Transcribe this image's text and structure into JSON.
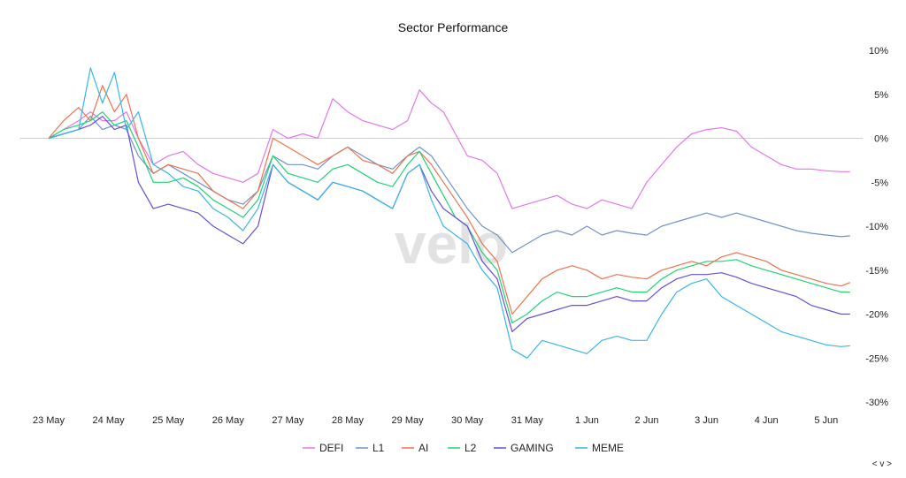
{
  "chart_data": {
    "type": "line",
    "title": "Sector Performance",
    "watermark": "velo",
    "corner_control": "< v >",
    "x_ticks": [
      "23 May",
      "24 May",
      "25 May",
      "26 May",
      "27 May",
      "28 May",
      "29 May",
      "30 May",
      "31 May",
      "1 Jun",
      "2 Jun",
      "3 Jun",
      "4 Jun",
      "5 Jun"
    ],
    "y_ticks": [
      "10%",
      "5%",
      "0%",
      "-5%",
      "-10%",
      "-15%",
      "-20%",
      "-25%",
      "-30%"
    ],
    "y_tick_values": [
      10,
      5,
      0,
      -5,
      -10,
      -15,
      -20,
      -25,
      -30
    ],
    "ylim": [
      -30,
      10
    ],
    "x_range_days": [
      -0.25,
      13.5
    ],
    "legend_position": "bottom",
    "zero_line": true,
    "series": [
      {
        "name": "DEFI",
        "color": "#e377e8",
        "x": [
          0,
          0.25,
          0.5,
          0.7,
          0.9,
          1.1,
          1.3,
          1.5,
          1.75,
          2,
          2.25,
          2.5,
          2.75,
          3,
          3.25,
          3.5,
          3.75,
          4,
          4.25,
          4.5,
          4.75,
          5,
          5.25,
          5.5,
          5.75,
          6,
          6.2,
          6.4,
          6.6,
          6.8,
          7,
          7.25,
          7.5,
          7.75,
          8,
          8.25,
          8.5,
          8.75,
          9,
          9.25,
          9.5,
          9.75,
          10,
          10.25,
          10.5,
          10.75,
          11,
          11.25,
          11.5,
          11.75,
          12,
          12.25,
          12.5,
          12.75,
          13,
          13.25,
          13.4
        ],
        "values": [
          0,
          1,
          2,
          3,
          2,
          2,
          3,
          0,
          -3,
          -2,
          -1.5,
          -3,
          -4,
          -4.5,
          -5,
          -4,
          1,
          0,
          0.5,
          0,
          4.5,
          3,
          2,
          1.5,
          1,
          2,
          5.5,
          4,
          3,
          0.5,
          -2,
          -2.5,
          -4,
          -8,
          -7.5,
          -7,
          -6.5,
          -7.5,
          -8,
          -7,
          -7.5,
          -8,
          -5,
          -3,
          -1,
          0.5,
          1,
          1.2,
          0.8,
          -1,
          -2,
          -3,
          -3.5,
          -3.5,
          -3.7,
          -3.8,
          -3.8
        ]
      },
      {
        "name": "L1",
        "color": "#6f93c9",
        "x": [
          0,
          0.25,
          0.5,
          0.7,
          0.9,
          1.1,
          1.3,
          1.5,
          1.75,
          2,
          2.25,
          2.5,
          2.75,
          3,
          3.25,
          3.5,
          3.75,
          4,
          4.25,
          4.5,
          4.75,
          5,
          5.25,
          5.5,
          5.75,
          6,
          6.2,
          6.4,
          6.6,
          6.8,
          7,
          7.25,
          7.5,
          7.75,
          8,
          8.25,
          8.5,
          8.75,
          9,
          9.25,
          9.5,
          9.75,
          10,
          10.25,
          10.5,
          10.75,
          11,
          11.25,
          11.5,
          11.75,
          12,
          12.25,
          12.5,
          12.75,
          13,
          13.25,
          13.4
        ],
        "values": [
          0,
          0.5,
          1,
          2.5,
          1,
          1.5,
          1,
          -2,
          -4,
          -3,
          -4,
          -5,
          -6,
          -7,
          -7.5,
          -6,
          -2,
          -3,
          -3,
          -3.5,
          -2,
          -1,
          -2,
          -3,
          -3.5,
          -2,
          -1,
          -2,
          -4,
          -6,
          -8,
          -10,
          -11,
          -13,
          -12,
          -11,
          -10.5,
          -11,
          -10,
          -11,
          -10.5,
          -10.8,
          -11,
          -10,
          -9.5,
          -9,
          -8.5,
          -9,
          -8.5,
          -9,
          -9.5,
          -10,
          -10.5,
          -10.8,
          -11,
          -11.2,
          -11.1
        ]
      },
      {
        "name": "AI",
        "color": "#f0724a",
        "x": [
          0,
          0.25,
          0.5,
          0.7,
          0.9,
          1.1,
          1.3,
          1.5,
          1.75,
          2,
          2.25,
          2.5,
          2.75,
          3,
          3.25,
          3.5,
          3.75,
          4,
          4.25,
          4.5,
          4.75,
          5,
          5.25,
          5.5,
          5.75,
          6,
          6.2,
          6.4,
          6.6,
          6.8,
          7,
          7.25,
          7.5,
          7.75,
          8,
          8.25,
          8.5,
          8.75,
          9,
          9.25,
          9.5,
          9.75,
          10,
          10.25,
          10.5,
          10.75,
          11,
          11.25,
          11.5,
          11.75,
          12,
          12.25,
          12.5,
          12.75,
          13,
          13.25,
          13.4
        ],
        "values": [
          0,
          2,
          3.5,
          2,
          6,
          3,
          5,
          0,
          -4,
          -3,
          -3.5,
          -4,
          -6,
          -7,
          -8,
          -6,
          0,
          -1,
          -2,
          -3,
          -2,
          -1,
          -2.5,
          -3,
          -4,
          -2,
          -1.5,
          -3,
          -5,
          -7,
          -9,
          -12,
          -14,
          -20,
          -18,
          -16,
          -15,
          -14.5,
          -15,
          -16,
          -15.5,
          -15.8,
          -16,
          -15,
          -14.5,
          -14,
          -14.5,
          -13.5,
          -13,
          -13.5,
          -14,
          -15,
          -15.5,
          -16,
          -16.5,
          -16.8,
          -16.4
        ]
      },
      {
        "name": "L2",
        "color": "#22d275",
        "x": [
          0,
          0.25,
          0.5,
          0.7,
          0.9,
          1.1,
          1.3,
          1.5,
          1.75,
          2,
          2.25,
          2.5,
          2.75,
          3,
          3.25,
          3.5,
          3.75,
          4,
          4.25,
          4.5,
          4.75,
          5,
          5.25,
          5.5,
          5.75,
          6,
          6.2,
          6.4,
          6.6,
          6.8,
          7,
          7.25,
          7.5,
          7.75,
          8,
          8.25,
          8.5,
          8.75,
          9,
          9.25,
          9.5,
          9.75,
          10,
          10.25,
          10.5,
          10.75,
          11,
          11.25,
          11.5,
          11.75,
          12,
          12.25,
          12.5,
          12.75,
          13,
          13.25,
          13.4
        ],
        "values": [
          0,
          1,
          1.5,
          2,
          3,
          1.5,
          2,
          -1,
          -5,
          -5,
          -4.5,
          -5.5,
          -7,
          -8,
          -9,
          -7,
          -2,
          -4,
          -4.5,
          -5,
          -3.5,
          -3,
          -4,
          -5,
          -5.5,
          -3,
          -1.5,
          -4,
          -6.5,
          -9,
          -10,
          -13,
          -15,
          -21,
          -20,
          -18.5,
          -17.5,
          -18,
          -18,
          -17.5,
          -17,
          -17.5,
          -17.5,
          -16,
          -15,
          -14.5,
          -14,
          -14,
          -13.8,
          -14.5,
          -15,
          -15.5,
          -16,
          -16.5,
          -17,
          -17.5,
          -17.5
        ]
      },
      {
        "name": "GAMING",
        "color": "#6a4fd0",
        "x": [
          0,
          0.25,
          0.5,
          0.7,
          0.9,
          1.1,
          1.3,
          1.5,
          1.75,
          2,
          2.25,
          2.5,
          2.75,
          3,
          3.25,
          3.5,
          3.75,
          4,
          4.25,
          4.5,
          4.75,
          5,
          5.25,
          5.5,
          5.75,
          6,
          6.2,
          6.4,
          6.6,
          6.8,
          7,
          7.25,
          7.5,
          7.75,
          8,
          8.25,
          8.5,
          8.75,
          9,
          9.25,
          9.5,
          9.75,
          10,
          10.25,
          10.5,
          10.75,
          11,
          11.25,
          11.5,
          11.75,
          12,
          12.25,
          12.5,
          12.75,
          13,
          13.25,
          13.4
        ],
        "values": [
          0,
          0.5,
          1,
          1.5,
          2.5,
          1,
          1.5,
          -5,
          -8,
          -7.5,
          -8,
          -8.5,
          -10,
          -11,
          -12,
          -10,
          -3,
          -5,
          -6,
          -7,
          -5,
          -5.5,
          -6,
          -7,
          -8,
          -4,
          -3,
          -6,
          -8,
          -9,
          -10,
          -14,
          -16,
          -22,
          -20.5,
          -20,
          -19.5,
          -19,
          -19,
          -18.5,
          -18,
          -18.5,
          -18.5,
          -17,
          -16,
          -15.5,
          -15.5,
          -15.3,
          -15.8,
          -16.5,
          -17,
          -17.5,
          -18,
          -19,
          -19.5,
          -20,
          -20
        ]
      },
      {
        "name": "MEME",
        "color": "#39b5ea",
        "x": [
          0,
          0.25,
          0.5,
          0.7,
          0.9,
          1.1,
          1.3,
          1.5,
          1.75,
          2,
          2.25,
          2.5,
          2.75,
          3,
          3.25,
          3.5,
          3.75,
          4,
          4.25,
          4.5,
          4.75,
          5,
          5.25,
          5.5,
          5.75,
          6,
          6.2,
          6.4,
          6.6,
          6.8,
          7,
          7.25,
          7.5,
          7.75,
          8,
          8.25,
          8.5,
          8.75,
          9,
          9.25,
          9.5,
          9.75,
          10,
          10.25,
          10.5,
          10.75,
          11,
          11.25,
          11.5,
          11.75,
          12,
          12.25,
          12.5,
          12.75,
          13,
          13.25,
          13.4
        ],
        "values": [
          0,
          0.5,
          1,
          8,
          4,
          7.5,
          1,
          3,
          -3,
          -4,
          -5.5,
          -6,
          -8,
          -9,
          -10.5,
          -8,
          -3,
          -5,
          -6,
          -7,
          -5,
          -5.5,
          -6,
          -7,
          -8,
          -4,
          -3,
          -7,
          -10,
          -11,
          -12,
          -15,
          -17,
          -24,
          -25,
          -23,
          -23.5,
          -24,
          -24.5,
          -23,
          -22.5,
          -23,
          -23,
          -20,
          -17.5,
          -16.5,
          -16,
          -18,
          -19,
          -20,
          -21,
          -22,
          -22.5,
          -23,
          -23.5,
          -23.7,
          -23.6
        ]
      }
    ]
  }
}
